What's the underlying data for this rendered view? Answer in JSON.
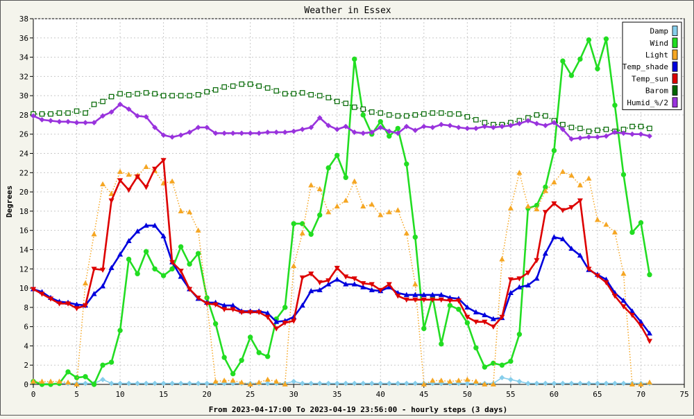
{
  "chart_data": {
    "type": "line",
    "title": "Weather in Essex",
    "xlabel": "From 2023-04-17:00 To 2023-04-19 23:56:00 - hourly steps (3 days)",
    "ylabel": "Degrees",
    "xlim": [
      0,
      75
    ],
    "ylim": [
      0,
      38
    ],
    "x_ticks": [
      "0",
      "5",
      "10",
      "15",
      "20",
      "25",
      "30",
      "35",
      "40",
      "45",
      "50",
      "55",
      "60",
      "65",
      "70",
      "75"
    ],
    "y_ticks": [
      "0",
      "2",
      "4",
      "6",
      "8",
      "10",
      "12",
      "14",
      "16",
      "18",
      "20",
      "22",
      "24",
      "26",
      "28",
      "30",
      "32",
      "34",
      "36",
      "38"
    ],
    "grid": true,
    "legend_position": "top-right",
    "x": [
      0,
      1,
      2,
      3,
      4,
      5,
      6,
      7,
      8,
      9,
      10,
      11,
      12,
      13,
      14,
      15,
      16,
      17,
      18,
      19,
      20,
      21,
      22,
      23,
      24,
      25,
      26,
      27,
      28,
      29,
      30,
      31,
      32,
      33,
      34,
      35,
      36,
      37,
      38,
      39,
      40,
      41,
      42,
      43,
      44,
      45,
      46,
      47,
      48,
      49,
      50,
      51,
      52,
      53,
      54,
      55,
      56,
      57,
      58,
      59,
      60,
      61,
      62,
      63,
      64,
      65,
      66,
      67,
      68,
      69,
      70,
      71
    ],
    "series": [
      {
        "name": "Damp",
        "color": "#87ceeb",
        "style": "solid-thin",
        "marker": "diamond",
        "values": [
          0.3,
          0.1,
          0.1,
          0.1,
          0.1,
          0.1,
          0.1,
          0.1,
          0.5,
          0.1,
          0.1,
          0.1,
          0.1,
          0.1,
          0.1,
          0.1,
          0.1,
          0.1,
          0.1,
          0.1,
          0.1,
          0.1,
          0.1,
          0.1,
          0.1,
          0.1,
          0.1,
          0.1,
          0.1,
          0.1,
          0.3,
          0.1,
          0.1,
          0.1,
          0.1,
          0.1,
          0.1,
          0.1,
          0.1,
          0.1,
          0.1,
          0.1,
          0.1,
          0.1,
          0.1,
          0.1,
          0.1,
          0.1,
          0.1,
          0.1,
          0.1,
          0.1,
          0.1,
          0.1,
          0.7,
          0.5,
          0.3,
          0.1,
          0.1,
          0.1,
          0.1,
          0.1,
          0.1,
          0.1,
          0.1,
          0.1,
          0.1,
          0.1,
          0.1,
          0.1,
          0.1,
          0.1
        ]
      },
      {
        "name": "Wind",
        "color": "#22dd22",
        "style": "solid-thick",
        "marker": "circle",
        "values": [
          0.3,
          0,
          0,
          0.1,
          1.3,
          0.7,
          0.8,
          0,
          2,
          2.3,
          5.6,
          13,
          11.5,
          13.8,
          12,
          11.3,
          12,
          14.3,
          12.5,
          13.6,
          9,
          6.3,
          2.8,
          1.1,
          2.5,
          4.9,
          3.3,
          2.9,
          6.8,
          8,
          16.7,
          16.7,
          15.6,
          17.6,
          22.5,
          23.8,
          21.5,
          33.8,
          28,
          26,
          27.3,
          25.8,
          26.6,
          22.9,
          15.3,
          5.8,
          9.1,
          4.2,
          8.2,
          7.8,
          6.4,
          3.8,
          1.8,
          2.2,
          2,
          2.4,
          5.2,
          18.3,
          18.6,
          20.5,
          24.3,
          33.6,
          32.1,
          33.8,
          35.8,
          32.8,
          35.9,
          29,
          21.8,
          15.8,
          16.8,
          11.4
        ]
      },
      {
        "name": "Light",
        "color": "#f5a623",
        "style": "dotted",
        "marker": "triangle",
        "values": [
          0.3,
          0.3,
          0.3,
          0.3,
          0.2,
          0,
          10.5,
          15.6,
          20.8,
          19.8,
          22.1,
          21.8,
          21.7,
          22.6,
          22.2,
          20.9,
          21.1,
          18,
          17.9,
          16,
          8.5,
          0.3,
          0.4,
          0.4,
          0.2,
          0,
          0.2,
          0.5,
          0.3,
          0,
          12.3,
          15.7,
          20.7,
          20.3,
          17.9,
          18.5,
          19.1,
          21.1,
          18.5,
          18.7,
          17.6,
          17.9,
          18.1,
          15.7,
          10.4,
          0,
          0.4,
          0.4,
          0.3,
          0.4,
          0.5,
          0.3,
          0,
          0,
          13,
          18.3,
          22,
          18.5,
          18.2,
          20.1,
          21,
          22.1,
          21.7,
          20.7,
          21.4,
          17.1,
          16.6,
          15.8,
          11.5,
          0,
          0,
          0.2
        ]
      },
      {
        "name": "Temp_shade",
        "color": "#0000dd",
        "style": "solid-thick",
        "marker": "triangle",
        "values": [
          9.9,
          9.6,
          9,
          8.6,
          8.5,
          8.3,
          8.2,
          9.4,
          10.2,
          12.1,
          13.5,
          14.9,
          15.9,
          16.5,
          16.5,
          15.4,
          12.7,
          11.2,
          9.9,
          8.9,
          8.5,
          8.5,
          8.2,
          8.2,
          7.6,
          7.6,
          7.6,
          7.4,
          6.5,
          6.6,
          7,
          8.2,
          9.7,
          9.8,
          10.4,
          10.9,
          10.4,
          10.4,
          10.1,
          9.8,
          9.7,
          10.1,
          9.5,
          9.3,
          9.3,
          9.3,
          9.3,
          9.3,
          9,
          8.9,
          8,
          7.5,
          7.2,
          6.8,
          6.9,
          9.5,
          10.1,
          10.3,
          11,
          13.6,
          15.3,
          15.1,
          14.1,
          13.4,
          11.9,
          11.4,
          10.9,
          9.5,
          8.7,
          7.6,
          6.5,
          5.3
        ]
      },
      {
        "name": "Temp_sun",
        "color": "#dd0000",
        "style": "solid-thick",
        "marker": "triangle-down",
        "values": [
          9.9,
          9.4,
          8.9,
          8.4,
          8.4,
          7.9,
          8.2,
          12,
          11.9,
          19.1,
          21.2,
          20.2,
          21.6,
          20.5,
          22.4,
          23.3,
          12.7,
          11.8,
          9.9,
          9,
          8.4,
          8.3,
          7.8,
          7.8,
          7.5,
          7.5,
          7.5,
          7,
          5.8,
          6.4,
          6.6,
          11.1,
          11.5,
          10.6,
          10.8,
          12.1,
          11.2,
          11,
          10.5,
          10.4,
          9.8,
          10.4,
          9.2,
          8.8,
          8.8,
          8.8,
          8.8,
          8.8,
          8.7,
          8.7,
          7,
          6.5,
          6.5,
          6,
          7,
          10.9,
          11,
          11.6,
          12.9,
          17.9,
          18.8,
          18.1,
          18.4,
          19.1,
          12,
          11.3,
          10.6,
          9.2,
          8.1,
          7.2,
          6.1,
          4.5
        ]
      },
      {
        "name": "Barom",
        "color": "#006600",
        "style": "dotted",
        "marker": "square",
        "values": [
          28.1,
          28.1,
          28.1,
          28.2,
          28.2,
          28.4,
          28.2,
          29.1,
          29.4,
          29.9,
          30.2,
          30.1,
          30.2,
          30.3,
          30.2,
          30,
          30,
          30,
          30,
          30.1,
          30.4,
          30.6,
          30.9,
          31,
          31.2,
          31.2,
          31,
          30.8,
          30.5,
          30.2,
          30.2,
          30.3,
          30.1,
          30,
          29.8,
          29.4,
          29.2,
          28.8,
          28.6,
          28.3,
          28.2,
          28,
          27.9,
          27.9,
          28,
          28.1,
          28.2,
          28.2,
          28.1,
          28.1,
          27.8,
          27.5,
          27.2,
          27,
          27,
          27.2,
          27.4,
          27.7,
          28,
          27.9,
          27.4,
          27,
          26.7,
          26.6,
          26.3,
          26.4,
          26.5,
          26.3,
          26.5,
          26.8,
          26.8,
          26.6
        ]
      },
      {
        "name": "Humid_%/2",
        "color": "#9933dd",
        "style": "solid-thick",
        "marker": "diamond",
        "values": [
          27.9,
          27.5,
          27.4,
          27.3,
          27.3,
          27.2,
          27.2,
          27.2,
          27.9,
          28.3,
          29.1,
          28.6,
          27.9,
          27.8,
          26.7,
          25.9,
          25.7,
          25.9,
          26.2,
          26.7,
          26.7,
          26.1,
          26.1,
          26.1,
          26.1,
          26.1,
          26.1,
          26.2,
          26.2,
          26.2,
          26.3,
          26.5,
          26.7,
          27.7,
          26.9,
          26.5,
          26.8,
          26.2,
          26.1,
          26.2,
          26.7,
          26.3,
          26.1,
          26.8,
          26.4,
          26.8,
          26.7,
          27,
          26.9,
          26.7,
          26.6,
          26.6,
          26.8,
          26.7,
          26.8,
          26.9,
          27.1,
          27.4,
          27.1,
          26.9,
          27.2,
          26.5,
          25.5,
          25.6,
          25.7,
          25.7,
          25.8,
          26.2,
          26.1,
          26,
          26,
          25.8
        ]
      }
    ]
  }
}
